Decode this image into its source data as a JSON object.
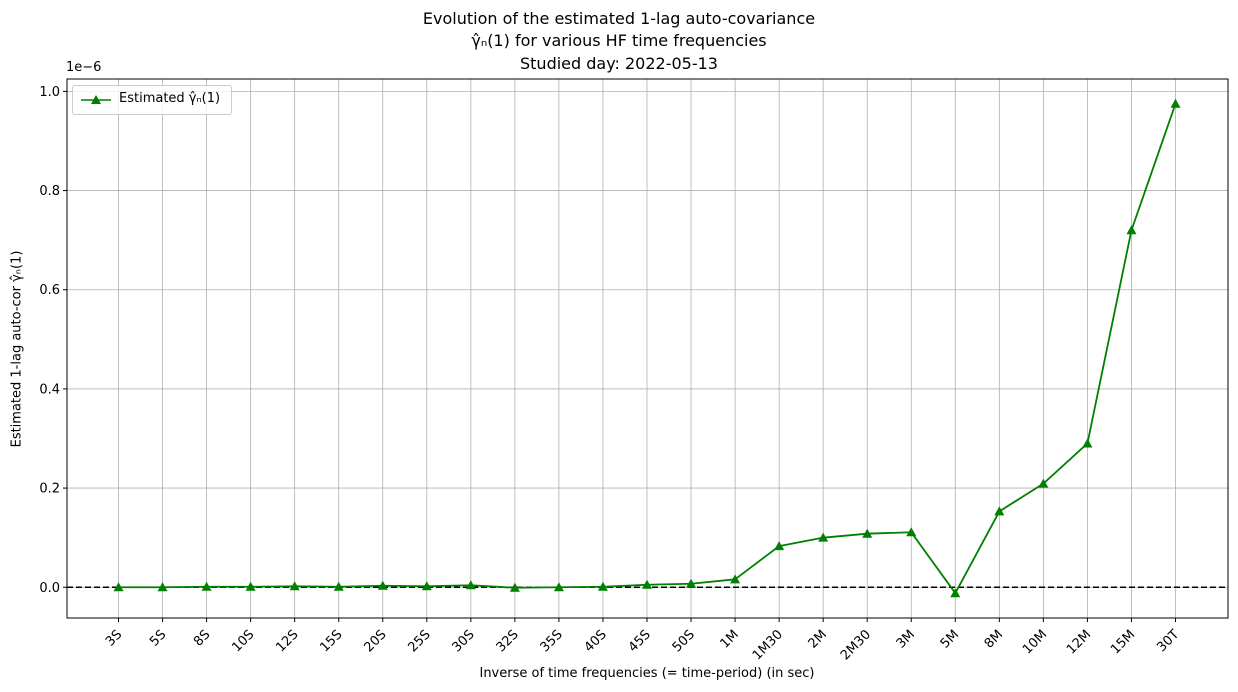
{
  "chart_data": {
    "type": "line",
    "title_lines": [
      "Evolution of the estimated 1-lag auto-covariance",
      "γ̂ₙ(1) for various HF time frequencies",
      "Studied day: 2022-05-13"
    ],
    "xlabel": "Inverse of time frequencies (= time-period) (in sec)",
    "ylabel": "Estimated 1-lag auto-cor γ̂ₙ(1)",
    "y_offset_label": "1e−6",
    "categories": [
      "3S",
      "5S",
      "8S",
      "10S",
      "12S",
      "15S",
      "20S",
      "25S",
      "30S",
      "32S",
      "35S",
      "40S",
      "45S",
      "50S",
      "1M",
      "1M30",
      "2M",
      "2M30",
      "3M",
      "5M",
      "8M",
      "10M",
      "12M",
      "15M",
      "30T"
    ],
    "series": [
      {
        "name": "Estimated γ̂ₙ(1)",
        "color": "#008000",
        "marker": "triangle-up",
        "values": [
          0.0,
          0.0,
          0.001,
          0.001,
          0.002,
          0.001,
          0.003,
          0.002,
          0.004,
          -0.001,
          0.0,
          0.001,
          0.005,
          0.007,
          0.016,
          0.083,
          0.1,
          0.108,
          0.111,
          -0.012,
          0.153,
          0.209,
          0.29,
          0.72,
          0.975
        ]
      }
    ],
    "ylim": [
      -0.062,
      1.025
    ],
    "yticks": [
      0.0,
      0.2,
      0.4,
      0.6,
      0.8,
      1.0
    ],
    "ytick_labels": [
      "0.0",
      "0.2",
      "0.4",
      "0.6",
      "0.8",
      "1.0"
    ],
    "hline": {
      "y": 0.0,
      "style": "dashed",
      "color": "#000000"
    },
    "grid": true,
    "legend_position": "upper-left"
  }
}
